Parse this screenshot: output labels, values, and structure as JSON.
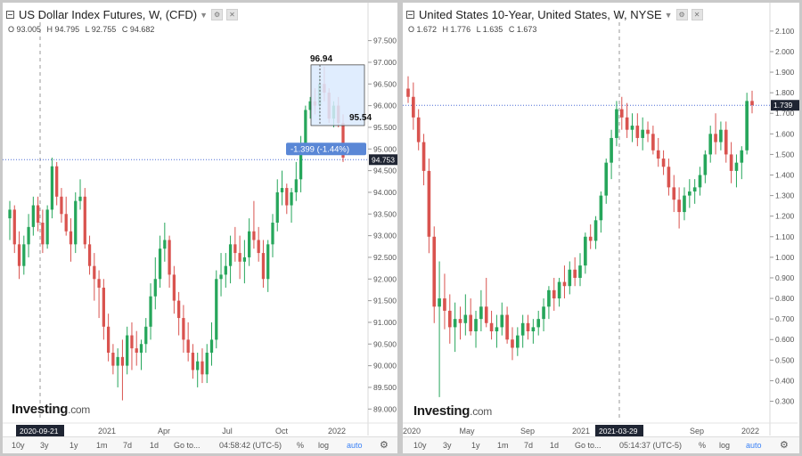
{
  "left_panel": {
    "title": "US Dollar Index Futures, W, (CFD)",
    "ohlc": {
      "o": "O 93.005",
      "h": "H 94.795",
      "l": "L 92.755",
      "c": "C 94.682"
    },
    "logo": "Investing",
    "logo_suffix": ".com",
    "time_labels": {
      "highlight": "2020-09-21",
      "t1": "2021",
      "t2": "Apr",
      "t3": "Jul",
      "t4": "Oct",
      "t5": "2022"
    },
    "bottom": {
      "r10y": "10y",
      "r3y": "3y",
      "r1y": "1y",
      "r1m": "1m",
      "r7d": "7d",
      "r1d": "1d",
      "goto": "Go to...",
      "clock": "04:58:42 (UTC-5)",
      "pct": "%",
      "log": "log",
      "auto": "auto"
    }
  },
  "right_panel": {
    "title": "United States 10-Year, United States, W, NYSE",
    "ohlc": {
      "o": "O 1.672",
      "h": "H 1.776",
      "l": "L 1.635",
      "c": "C 1.673"
    },
    "logo": "Investing",
    "logo_suffix": ".com",
    "time_labels": {
      "t0": "2020",
      "t1": "May",
      "t2": "Sep",
      "t3": "2021",
      "highlight": "2021-03-29",
      "t5": "Sep",
      "t6": "2022"
    },
    "bottom": {
      "r10y": "10y",
      "r3y": "3y",
      "r1y": "1y",
      "r1m": "1m",
      "r7d": "7d",
      "r1d": "1d",
      "goto": "Go to...",
      "clock": "05:14:37 (UTC-5)",
      "pct": "%",
      "log": "log",
      "auto": "auto"
    }
  },
  "colors": {
    "up": "#26a65b",
    "down": "#d9534f",
    "accent": "#3b82f6",
    "measure_fill": "#dbeafe",
    "measure_label": "#5a87d6"
  },
  "chart_data": [
    {
      "type": "candlestick",
      "title": "US Dollar Index Futures, W, (CFD)",
      "y_ticks": [
        "97.500",
        "97.000",
        "96.500",
        "96.000",
        "95.500",
        "95.000",
        "94.500",
        "94.000",
        "93.500",
        "93.000",
        "92.500",
        "92.000",
        "91.500",
        "91.000",
        "90.500",
        "90.000",
        "89.500",
        "89.000"
      ],
      "ylim": [
        88.8,
        97.8
      ],
      "last_price": "94.753",
      "measure": {
        "high_label": "96.94",
        "low_label": "95.54",
        "change_label": "-1.399 (-1.44%)",
        "high": 96.94,
        "low": 95.54
      },
      "candles": [
        [
          93.4,
          93.8,
          92.9,
          93.6
        ],
        [
          93.6,
          93.7,
          92.6,
          92.8
        ],
        [
          92.8,
          93.1,
          92.0,
          92.3
        ],
        [
          92.3,
          93.0,
          92.1,
          92.8
        ],
        [
          92.8,
          93.5,
          92.5,
          93.2
        ],
        [
          93.2,
          93.9,
          93.0,
          93.7
        ],
        [
          93.7,
          93.9,
          93.1,
          93.3
        ],
        [
          93.3,
          93.6,
          92.6,
          92.8
        ],
        [
          92.8,
          93.7,
          92.7,
          93.6
        ],
        [
          93.6,
          94.8,
          93.4,
          94.6
        ],
        [
          94.6,
          94.7,
          93.7,
          93.9
        ],
        [
          93.9,
          94.1,
          93.3,
          93.5
        ],
        [
          93.5,
          93.9,
          93.0,
          93.1
        ],
        [
          93.1,
          93.4,
          92.4,
          92.8
        ],
        [
          92.8,
          94.0,
          92.6,
          93.8
        ],
        [
          93.8,
          94.3,
          93.6,
          93.9
        ],
        [
          93.9,
          94.1,
          92.7,
          92.8
        ],
        [
          92.8,
          93.0,
          92.1,
          92.3
        ],
        [
          92.3,
          92.6,
          91.5,
          92.0
        ],
        [
          92.0,
          92.2,
          91.1,
          91.8
        ],
        [
          91.8,
          92.0,
          90.6,
          90.9
        ],
        [
          90.9,
          91.2,
          90.1,
          90.3
        ],
        [
          90.3,
          90.5,
          89.8,
          90.0
        ],
        [
          90.0,
          90.4,
          89.5,
          90.2
        ],
        [
          90.2,
          90.6,
          89.2,
          90.0
        ],
        [
          90.0,
          90.9,
          89.8,
          90.7
        ],
        [
          90.7,
          91.0,
          89.9,
          90.4
        ],
        [
          90.4,
          90.8,
          90.0,
          90.3
        ],
        [
          90.3,
          90.6,
          89.9,
          90.5
        ],
        [
          90.5,
          91.1,
          90.3,
          90.9
        ],
        [
          90.9,
          91.9,
          90.6,
          91.6
        ],
        [
          91.6,
          92.5,
          91.3,
          92.0
        ],
        [
          92.0,
          93.0,
          91.8,
          92.7
        ],
        [
          92.7,
          93.3,
          92.4,
          92.9
        ],
        [
          92.9,
          93.0,
          91.8,
          92.1
        ],
        [
          92.1,
          92.3,
          91.2,
          91.5
        ],
        [
          91.5,
          91.7,
          90.7,
          91.1
        ],
        [
          91.1,
          91.4,
          90.3,
          90.6
        ],
        [
          90.6,
          91.0,
          90.1,
          90.3
        ],
        [
          90.3,
          90.5,
          89.7,
          89.9
        ],
        [
          89.9,
          90.3,
          89.5,
          90.1
        ],
        [
          90.1,
          90.4,
          89.6,
          89.8
        ],
        [
          89.8,
          90.5,
          89.6,
          90.3
        ],
        [
          90.3,
          91.0,
          90.0,
          90.6
        ],
        [
          90.6,
          92.2,
          90.4,
          92.0
        ],
        [
          92.0,
          92.6,
          91.6,
          92.1
        ],
        [
          92.1,
          92.6,
          91.8,
          92.3
        ],
        [
          92.3,
          93.0,
          91.9,
          92.8
        ],
        [
          92.8,
          93.2,
          92.4,
          92.6
        ],
        [
          92.6,
          93.0,
          92.0,
          92.4
        ],
        [
          92.4,
          92.9,
          91.9,
          92.5
        ],
        [
          92.5,
          93.4,
          92.3,
          93.1
        ],
        [
          93.1,
          93.8,
          92.7,
          92.9
        ],
        [
          92.9,
          93.2,
          92.4,
          92.6
        ],
        [
          92.6,
          92.9,
          91.8,
          92.0
        ],
        [
          92.0,
          92.9,
          91.7,
          92.8
        ],
        [
          92.8,
          93.5,
          92.5,
          93.3
        ],
        [
          93.3,
          94.3,
          93.1,
          94.0
        ],
        [
          94.0,
          94.5,
          93.7,
          94.1
        ],
        [
          94.1,
          94.2,
          93.5,
          93.7
        ],
        [
          93.7,
          94.1,
          93.3,
          94.0
        ],
        [
          94.0,
          94.7,
          93.8,
          94.3
        ],
        [
          94.3,
          95.3,
          94.0,
          95.1
        ],
        [
          95.1,
          96.0,
          94.9,
          95.9
        ],
        [
          95.9,
          96.2,
          95.7,
          96.1
        ],
        [
          96.1,
          96.4,
          95.8,
          96.0
        ],
        [
          96.0,
          96.7,
          95.7,
          96.5
        ],
        [
          96.5,
          96.9,
          96.1,
          96.3
        ],
        [
          96.3,
          96.4,
          95.6,
          95.7
        ],
        [
          95.7,
          96.1,
          95.5,
          96.0
        ],
        [
          96.0,
          96.2,
          95.5,
          95.6
        ],
        [
          95.6,
          95.8,
          94.7,
          94.8
        ]
      ]
    },
    {
      "type": "candlestick",
      "title": "United States 10-Year, United States, W, NYSE",
      "y_ticks": [
        "2.100",
        "2.000",
        "1.900",
        "1.800",
        "1.700",
        "1.600",
        "1.500",
        "1.400",
        "1.300",
        "1.200",
        "1.100",
        "1.000",
        "0.900",
        "0.800",
        "0.700",
        "0.600",
        "0.500",
        "0.400",
        "0.300"
      ],
      "ylim": [
        0.22,
        2.16
      ],
      "last_price": "1.739",
      "candles": [
        [
          1.82,
          1.88,
          1.75,
          1.78
        ],
        [
          1.78,
          1.85,
          1.62,
          1.68
        ],
        [
          1.68,
          1.72,
          1.52,
          1.56
        ],
        [
          1.56,
          1.6,
          1.35,
          1.42
        ],
        [
          1.42,
          1.48,
          1.02,
          1.1
        ],
        [
          1.1,
          1.15,
          0.68,
          0.76
        ],
        [
          0.76,
          0.98,
          0.32,
          0.8
        ],
        [
          0.8,
          0.92,
          0.65,
          0.74
        ],
        [
          0.74,
          0.82,
          0.58,
          0.66
        ],
        [
          0.66,
          0.78,
          0.54,
          0.7
        ],
        [
          0.7,
          0.76,
          0.6,
          0.68
        ],
        [
          0.68,
          0.82,
          0.62,
          0.72
        ],
        [
          0.72,
          0.8,
          0.62,
          0.64
        ],
        [
          0.64,
          0.74,
          0.56,
          0.7
        ],
        [
          0.7,
          0.84,
          0.64,
          0.76
        ],
        [
          0.76,
          0.9,
          0.66,
          0.68
        ],
        [
          0.68,
          0.74,
          0.6,
          0.64
        ],
        [
          0.64,
          0.72,
          0.56,
          0.66
        ],
        [
          0.66,
          0.78,
          0.62,
          0.72
        ],
        [
          0.72,
          0.76,
          0.58,
          0.6
        ],
        [
          0.6,
          0.66,
          0.5,
          0.56
        ],
        [
          0.56,
          0.66,
          0.52,
          0.62
        ],
        [
          0.62,
          0.72,
          0.56,
          0.68
        ],
        [
          0.68,
          0.72,
          0.6,
          0.64
        ],
        [
          0.64,
          0.7,
          0.58,
          0.66
        ],
        [
          0.66,
          0.74,
          0.62,
          0.7
        ],
        [
          0.7,
          0.8,
          0.64,
          0.76
        ],
        [
          0.76,
          0.86,
          0.7,
          0.84
        ],
        [
          0.84,
          0.9,
          0.74,
          0.8
        ],
        [
          0.8,
          0.9,
          0.76,
          0.88
        ],
        [
          0.88,
          0.96,
          0.8,
          0.86
        ],
        [
          0.86,
          0.98,
          0.82,
          0.94
        ],
        [
          0.94,
          1.0,
          0.86,
          0.9
        ],
        [
          0.9,
          1.02,
          0.86,
          0.96
        ],
        [
          0.96,
          1.12,
          0.92,
          1.1
        ],
        [
          1.1,
          1.16,
          1.04,
          1.08
        ],
        [
          1.08,
          1.2,
          1.04,
          1.18
        ],
        [
          1.18,
          1.32,
          1.12,
          1.3
        ],
        [
          1.3,
          1.48,
          1.26,
          1.46
        ],
        [
          1.46,
          1.62,
          1.38,
          1.58
        ],
        [
          1.58,
          1.76,
          1.54,
          1.72
        ],
        [
          1.72,
          1.78,
          1.62,
          1.68
        ],
        [
          1.68,
          1.75,
          1.58,
          1.62
        ],
        [
          1.62,
          1.7,
          1.56,
          1.64
        ],
        [
          1.64,
          1.7,
          1.54,
          1.58
        ],
        [
          1.58,
          1.68,
          1.52,
          1.62
        ],
        [
          1.62,
          1.66,
          1.56,
          1.6
        ],
        [
          1.6,
          1.64,
          1.5,
          1.52
        ],
        [
          1.52,
          1.58,
          1.44,
          1.48
        ],
        [
          1.48,
          1.52,
          1.4,
          1.44
        ],
        [
          1.44,
          1.48,
          1.3,
          1.34
        ],
        [
          1.34,
          1.4,
          1.22,
          1.28
        ],
        [
          1.28,
          1.34,
          1.14,
          1.22
        ],
        [
          1.22,
          1.34,
          1.18,
          1.3
        ],
        [
          1.3,
          1.38,
          1.24,
          1.32
        ],
        [
          1.32,
          1.38,
          1.26,
          1.34
        ],
        [
          1.34,
          1.44,
          1.3,
          1.4
        ],
        [
          1.4,
          1.52,
          1.36,
          1.5
        ],
        [
          1.5,
          1.64,
          1.46,
          1.6
        ],
        [
          1.6,
          1.7,
          1.5,
          1.56
        ],
        [
          1.56,
          1.66,
          1.52,
          1.62
        ],
        [
          1.62,
          1.66,
          1.46,
          1.5
        ],
        [
          1.5,
          1.56,
          1.36,
          1.42
        ],
        [
          1.42,
          1.5,
          1.34,
          1.46
        ],
        [
          1.46,
          1.54,
          1.38,
          1.52
        ],
        [
          1.52,
          1.8,
          1.5,
          1.76
        ],
        [
          1.76,
          1.81,
          1.7,
          1.74
        ]
      ]
    }
  ]
}
